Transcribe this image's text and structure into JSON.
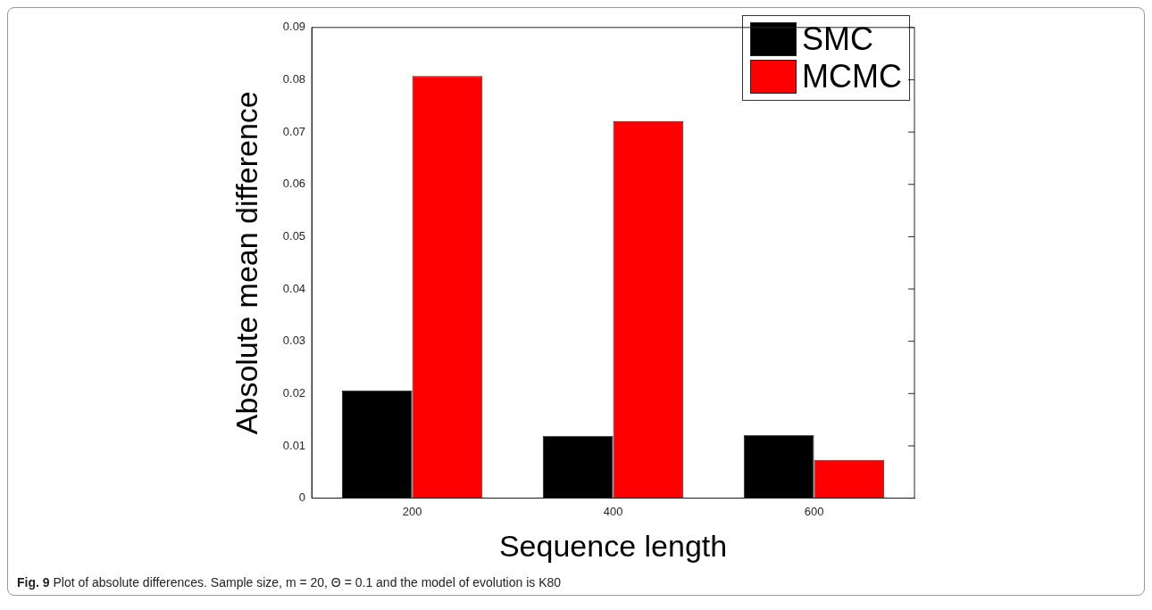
{
  "chart_data": {
    "type": "bar",
    "xlabel": "Sequence length",
    "ylabel": "Absolute mean difference",
    "categories": [
      "200",
      "400",
      "600"
    ],
    "series": [
      {
        "name": "SMC",
        "color": "#000000",
        "values": [
          0.0206,
          0.0119,
          0.0121
        ]
      },
      {
        "name": "MCMC",
        "color": "#ff0000",
        "values": [
          0.0807,
          0.0721,
          0.0073
        ]
      }
    ],
    "ylim": [
      0,
      0.09
    ],
    "yticks": [
      0,
      0.01,
      0.02,
      0.03,
      0.04,
      0.05,
      0.06,
      0.07,
      0.08,
      0.09
    ],
    "legend": "top right",
    "grid": false,
    "annotations": [
      "Fig. 9 Plot of absolute differences. Sample size, m = 20, Θ = 0.1 and the model of evolution is K80"
    ]
  }
}
